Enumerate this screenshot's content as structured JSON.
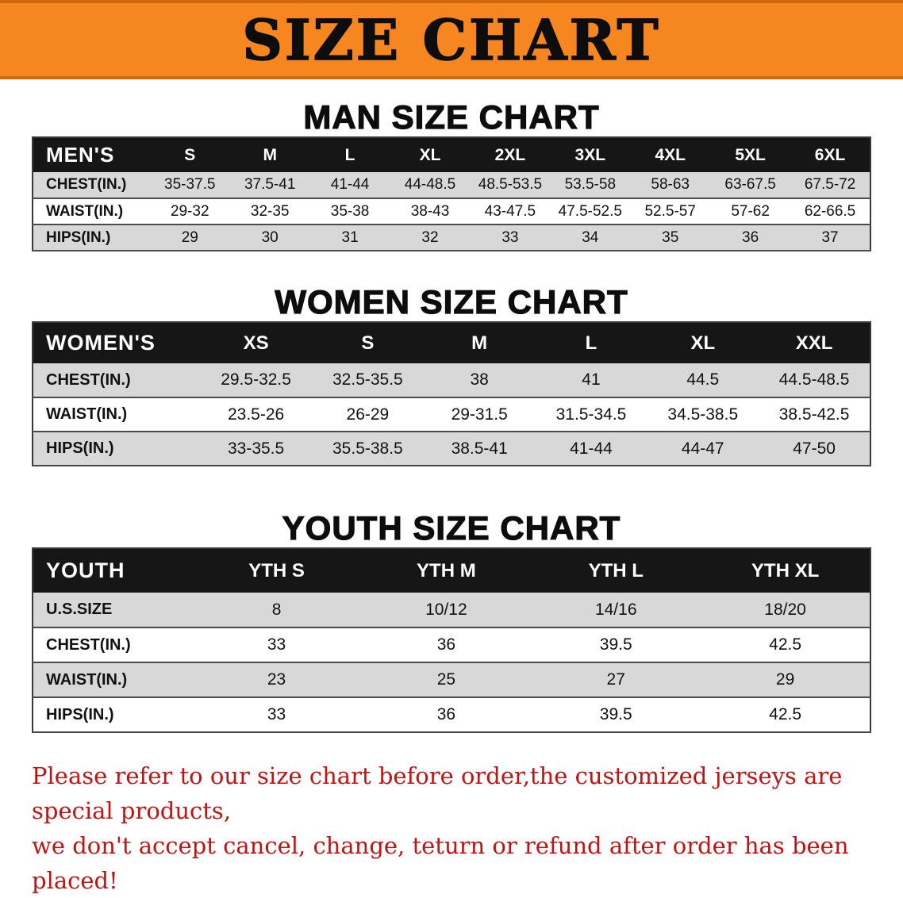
{
  "banner": {
    "title": "SIZE CHART"
  },
  "sections": [
    {
      "heading": "MAN SIZE CHART",
      "table": {
        "header": [
          "MEN'S",
          "S",
          "M",
          "L",
          "XL",
          "2XL",
          "3XL",
          "4XL",
          "5XL",
          "6XL"
        ],
        "rows": [
          [
            "CHEST(IN.)",
            "35-37.5",
            "37.5-41",
            "41-44",
            "44-48.5",
            "48.5-53.5",
            "53.5-58",
            "58-63",
            "63-67.5",
            "67.5-72"
          ],
          [
            "WAIST(IN.)",
            "29-32",
            "32-35",
            "35-38",
            "38-43",
            "43-47.5",
            "47.5-52.5",
            "52.5-57",
            "57-62",
            "62-66.5"
          ],
          [
            "HIPS(IN.)",
            "29",
            "30",
            "31",
            "32",
            "33",
            "34",
            "35",
            "36",
            "37"
          ]
        ]
      }
    },
    {
      "heading": "WOMEN SIZE CHART",
      "table": {
        "header": [
          "WOMEN'S",
          "XS",
          "S",
          "M",
          "L",
          "XL",
          "XXL"
        ],
        "rows": [
          [
            "CHEST(IN.)",
            "29.5-32.5",
            "32.5-35.5",
            "38",
            "41",
            "44.5",
            "44.5-48.5"
          ],
          [
            "WAIST(IN.)",
            "23.5-26",
            "26-29",
            "29-31.5",
            "31.5-34.5",
            "34.5-38.5",
            "38.5-42.5"
          ],
          [
            "HIPS(IN.)",
            "33-35.5",
            "35.5-38.5",
            "38.5-41",
            "41-44",
            "44-47",
            "47-50"
          ]
        ]
      }
    },
    {
      "heading": "YOUTH SIZE CHART",
      "table": {
        "header": [
          "YOUTH",
          "YTH S",
          "YTH M",
          "YTH L",
          "YTH XL"
        ],
        "rows": [
          [
            "U.S.SIZE",
            "8",
            "10/12",
            "14/16",
            "18/20"
          ],
          [
            "CHEST(IN.)",
            "33",
            "36",
            "39.5",
            "42.5"
          ],
          [
            "WAIST(IN.)",
            "23",
            "25",
            "27",
            "29"
          ],
          [
            "HIPS(IN.)",
            "33",
            "36",
            "39.5",
            "42.5"
          ]
        ]
      }
    }
  ],
  "disclaimer": {
    "lines": [
      "Please refer to our size chart before order,the customized jerseys are special products,",
      "we don't accept cancel, change, teturn or refund after order has been placed!"
    ]
  },
  "colors": {
    "banner_orange": "#f6861f",
    "header_black": "#161616",
    "row_gray": "#d8d8d8",
    "disclaimer_red": "#c01414"
  }
}
